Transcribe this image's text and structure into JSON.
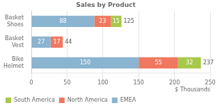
{
  "chart_data": {
    "type": "bar",
    "orientation": "horizontal",
    "stacked": true,
    "title": "Sales by Product",
    "categories": [
      "Basket\nShoes",
      "Basket\nVest",
      "Bike\nHelmet"
    ],
    "series": [
      {
        "name": "EMEA",
        "color": "#8ab4d0",
        "values": [
          88,
          27,
          150
        ]
      },
      {
        "name": "North America",
        "color": "#f07860",
        "values": [
          23,
          17,
          55
        ]
      },
      {
        "name": "South America",
        "color": "#a8c84a",
        "values": [
          15,
          0,
          32
        ]
      }
    ],
    "totals": [
      125,
      44,
      237
    ],
    "xlim": [
      0,
      250
    ],
    "xticks": [
      0,
      50,
      100,
      150,
      200,
      250
    ],
    "xlabel": "$ Thousands",
    "grid": true,
    "data_labels": true,
    "legend": "bottom"
  }
}
